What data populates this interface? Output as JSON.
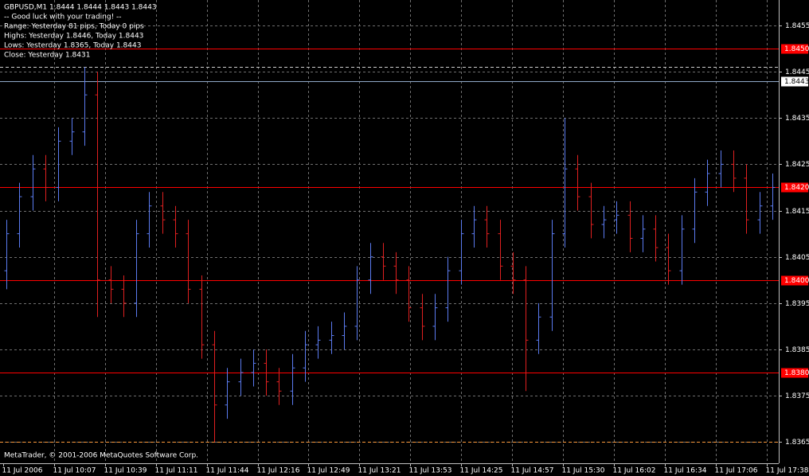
{
  "chart_data": {
    "type": "ohlc",
    "symbol_line": "GBPUSD,M1  1.8444 1.8444 1.8443 1.8443",
    "info_lines": [
      "-- Good luck with your trading! --",
      "Range: Yesterday 81 pips, Today 0 pips",
      "Highs: Yesterday 1.8446, Today 1.8443",
      "Lows: Yesterday 1.8365, Today 1.8443",
      "Close: Yesterday 1.8431"
    ],
    "copyright": "MetaTrader, © 2001-2006 MetaQuotes Software Corp.",
    "x_labels": [
      "11 Jul 2006",
      "11 Jul 10:07",
      "11 Jul 10:39",
      "11 Jul 11:11",
      "11 Jul 11:44",
      "11 Jul 12:16",
      "11 Jul 12:49",
      "11 Jul 13:21",
      "11 Jul 13:53",
      "11 Jul 14:25",
      "11 Jul 14:57",
      "11 Jul 15:30",
      "11 Jul 16:02",
      "11 Jul 16:34",
      "11 Jul 17:06",
      "11 Jul 17:38"
    ],
    "ylim": [
      1.83604,
      1.84605
    ],
    "yticks": [
      1.8365,
      1.8375,
      1.8385,
      1.8395,
      1.8405,
      1.8415,
      1.8425,
      1.8435,
      1.8445,
      1.8455
    ],
    "grid": true,
    "up_color": "#5b7bf0",
    "down_color": "#e02020",
    "flat_color": "#3cb043",
    "levels": [
      {
        "value": {
          "value": 1.845,
          "label": "1.8450"
        },
        "color": "#ff0000"
      },
      {
        "value": {
          "value": 1.842,
          "label": "1.8420"
        },
        "color": "#ff0000"
      },
      {
        "value": {
          "value": 1.84,
          "label": "1.8400"
        },
        "color": "#ff0000"
      },
      {
        "value": {
          "value": 1.838,
          "label": "1.8380"
        },
        "color": "#ff0000"
      },
      {
        "value": 1.8443,
        "color": "#8fa8c8"
      }
    ],
    "dashed_levels": [
      {
        "value": 1.8446,
        "color": "#d0d0d0"
      },
      {
        "value": 1.8365,
        "color": "#ff9a3c"
      }
    ],
    "open": [
      1.8402,
      1.841,
      1.8418,
      1.8424,
      1.842,
      1.843,
      1.8432,
      1.844,
      1.84,
      1.8398,
      1.8395,
      1.841,
      1.8416,
      1.8413,
      1.841,
      1.8398,
      1.8386,
      1.8373,
      1.8378,
      1.838,
      1.8382,
      1.8378,
      1.8376,
      1.8381,
      1.8386,
      1.8387,
      1.8388,
      1.839,
      1.84,
      1.8405,
      1.8403,
      1.84,
      1.8394,
      1.839,
      1.8394,
      1.8402,
      1.841,
      1.8413,
      1.841,
      1.8403,
      1.84,
      1.8387,
      1.8392,
      1.841,
      1.8424,
      1.8418,
      1.8412,
      1.8413,
      1.8414,
      1.8409,
      1.8411,
      1.8407,
      1.8402,
      1.8411,
      1.8419,
      1.8423,
      1.8425,
      1.8422,
      1.8413,
      1.8416
    ],
    "high": [
      1.8413,
      1.8421,
      1.8427,
      1.8427,
      1.8433,
      1.8435,
      1.8446,
      1.8445,
      1.8403,
      1.8401,
      1.8413,
      1.8419,
      1.8419,
      1.8416,
      1.8413,
      1.8401,
      1.8389,
      1.8381,
      1.8383,
      1.8385,
      1.8385,
      1.8381,
      1.8384,
      1.8389,
      1.839,
      1.8391,
      1.8393,
      1.8403,
      1.8408,
      1.8408,
      1.8406,
      1.8403,
      1.8397,
      1.8397,
      1.8405,
      1.8413,
      1.8416,
      1.8416,
      1.8413,
      1.8406,
      1.8403,
      1.8395,
      1.8413,
      1.8435,
      1.8427,
      1.8421,
      1.8416,
      1.8417,
      1.8417,
      1.8414,
      1.8414,
      1.841,
      1.8414,
      1.8422,
      1.8426,
      1.8428,
      1.8428,
      1.8425,
      1.8419,
      1.8423
    ],
    "low": [
      1.8398,
      1.8407,
      1.8415,
      1.8417,
      1.8417,
      1.8427,
      1.8429,
      1.8392,
      1.8395,
      1.8392,
      1.8392,
      1.8407,
      1.841,
      1.8407,
      1.8395,
      1.8383,
      1.8365,
      1.837,
      1.8375,
      1.8377,
      1.8375,
      1.8373,
      1.8373,
      1.8378,
      1.8383,
      1.8384,
      1.8385,
      1.8387,
      1.8397,
      1.84,
      1.8397,
      1.8391,
      1.8387,
      1.8387,
      1.8391,
      1.8399,
      1.8407,
      1.8407,
      1.84,
      1.8397,
      1.8376,
      1.8384,
      1.8389,
      1.8407,
      1.8415,
      1.8409,
      1.8409,
      1.841,
      1.8406,
      1.8406,
      1.8404,
      1.8399,
      1.8399,
      1.8408,
      1.8416,
      1.842,
      1.8419,
      1.841,
      1.841,
      1.8413
    ],
    "close": [
      1.841,
      1.8418,
      1.8424,
      1.842,
      1.843,
      1.8432,
      1.844,
      1.84,
      1.8398,
      1.8395,
      1.841,
      1.8416,
      1.8413,
      1.841,
      1.8398,
      1.8386,
      1.8373,
      1.8378,
      1.838,
      1.8382,
      1.8378,
      1.8376,
      1.8381,
      1.8386,
      1.8387,
      1.8388,
      1.839,
      1.84,
      1.8405,
      1.8403,
      1.84,
      1.8394,
      1.839,
      1.8394,
      1.8402,
      1.841,
      1.8413,
      1.841,
      1.8403,
      1.84,
      1.8387,
      1.8392,
      1.841,
      1.8424,
      1.8418,
      1.8412,
      1.8413,
      1.8414,
      1.8409,
      1.8411,
      1.8407,
      1.8402,
      1.8411,
      1.8419,
      1.8423,
      1.8425,
      1.8422,
      1.8413,
      1.8416,
      1.842
    ]
  }
}
